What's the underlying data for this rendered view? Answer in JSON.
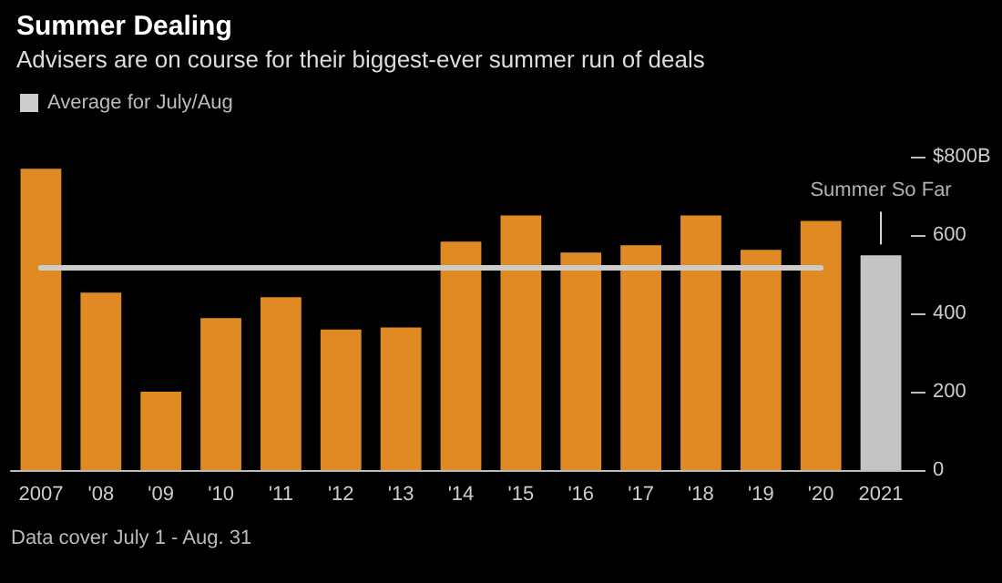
{
  "chart_data": {
    "type": "bar",
    "title": "Summer Dealing",
    "subtitle": "Advisers are on course for their biggest-ever summer run of deals",
    "categories": [
      "2007",
      "'08",
      "'09",
      "'10",
      "'11",
      "'12",
      "'13",
      "'14",
      "'15",
      "'16",
      "'17",
      "'18",
      "'19",
      "'20",
      "2021"
    ],
    "series": [
      {
        "values": [
          769,
          453,
          200,
          388,
          441,
          359,
          364,
          583,
          650,
          555,
          574,
          650,
          562,
          636,
          548
        ],
        "colors": [
          "#e08a24",
          "#e08a24",
          "#e08a24",
          "#e08a24",
          "#e08a24",
          "#e08a24",
          "#e08a24",
          "#e08a24",
          "#e08a24",
          "#e08a24",
          "#e08a24",
          "#e08a24",
          "#e08a24",
          "#e08a24",
          "#c4c4c4"
        ]
      },
      {
        "type": "line",
        "name": "Average for July/Aug",
        "color": "#cccccc",
        "values": [
          516,
          516,
          516,
          516,
          516,
          516,
          516,
          516,
          516,
          516,
          516,
          516,
          516,
          516,
          null
        ]
      }
    ],
    "ylim": [
      0,
      800
    ],
    "yticks": [
      0,
      200,
      400,
      600,
      {
        "value": 800,
        "label": "$800B"
      }
    ],
    "annotations": [
      {
        "text": "Summer So Far",
        "x": "2021",
        "y": 548
      },
      "Data cover July 1 - Aug. 31"
    ],
    "legend": "top left",
    "grid": false,
    "marker": "none"
  }
}
